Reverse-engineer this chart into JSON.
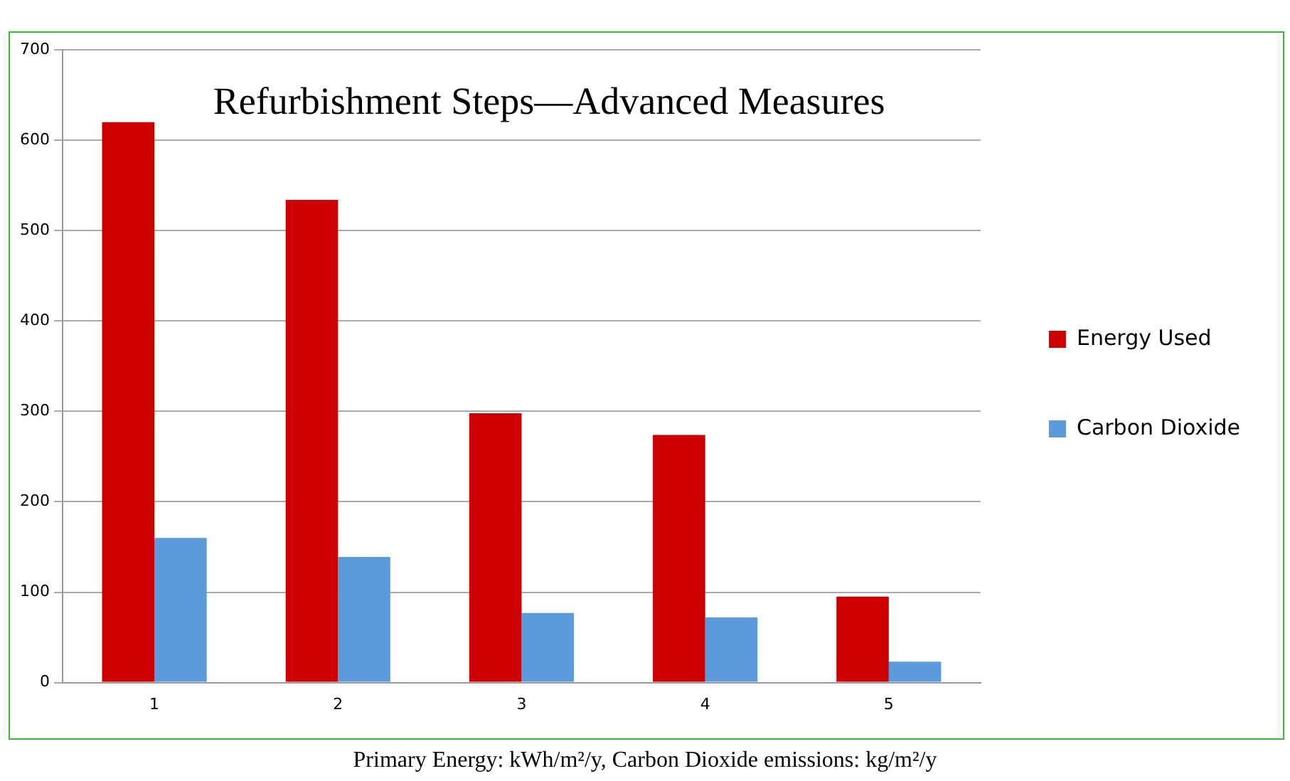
{
  "chart_data": {
    "type": "bar",
    "title": "Refurbishment Steps—Advanced Measures",
    "categories": [
      "1",
      "2",
      "3",
      "4",
      "5"
    ],
    "series": [
      {
        "name": "Energy Used",
        "color": "#cc0000",
        "values": [
          620,
          534,
          298,
          274,
          95
        ]
      },
      {
        "name": "Carbon Dioxide",
        "color": "#5b9bdb",
        "values": [
          160,
          139,
          77,
          72,
          23
        ]
      }
    ],
    "ylim": [
      0,
      700
    ],
    "yticks": [
      0,
      100,
      200,
      300,
      400,
      500,
      600,
      700
    ],
    "grid": "y",
    "legend": "right",
    "annotations": [
      "Primary Energy: kWh/m²/y, Carbon Dioxide emissions: kg/m²/y"
    ]
  }
}
